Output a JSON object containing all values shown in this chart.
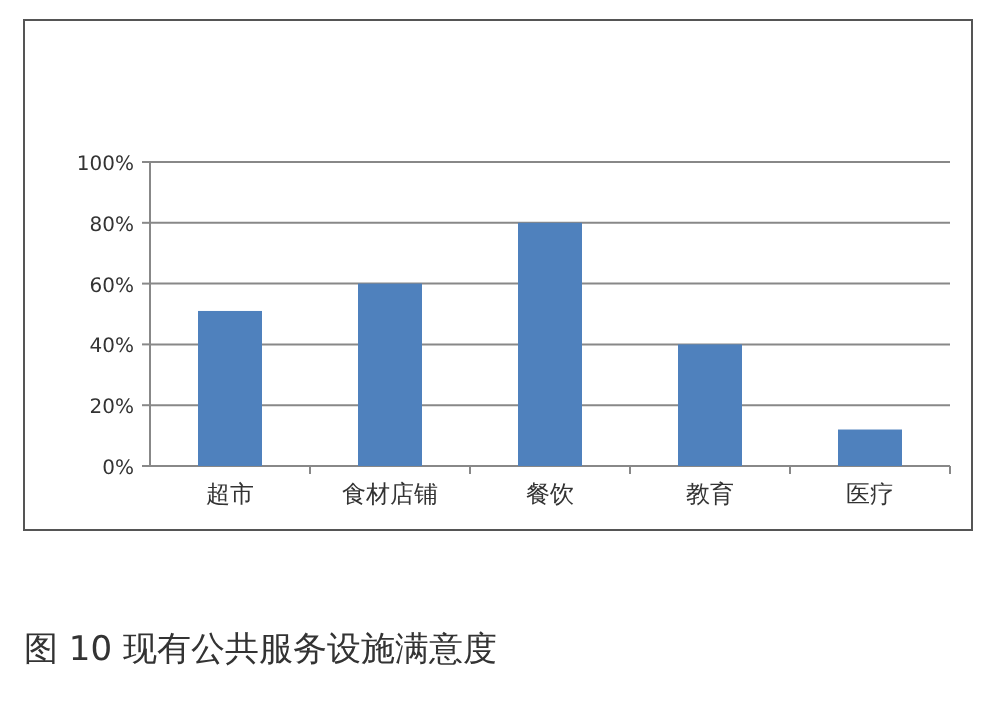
{
  "chart_data": {
    "type": "bar",
    "title": "图 10 现有公共服务设施满意度",
    "categories": [
      "超市",
      "食材店铺",
      "餐饮",
      "教育",
      "医疗"
    ],
    "values": [
      51,
      60,
      80,
      40,
      12
    ],
    "color": "#4f81bd",
    "ylim": [
      0,
      100
    ],
    "yticks": [
      {
        "value": 0,
        "label": "0%"
      },
      {
        "value": 20,
        "label": "20%"
      },
      {
        "value": 40,
        "label": "40%"
      },
      {
        "value": 60,
        "label": "60%"
      },
      {
        "value": 80,
        "label": "80%"
      },
      {
        "value": 100,
        "label": "100%"
      }
    ],
    "grid": "y"
  }
}
